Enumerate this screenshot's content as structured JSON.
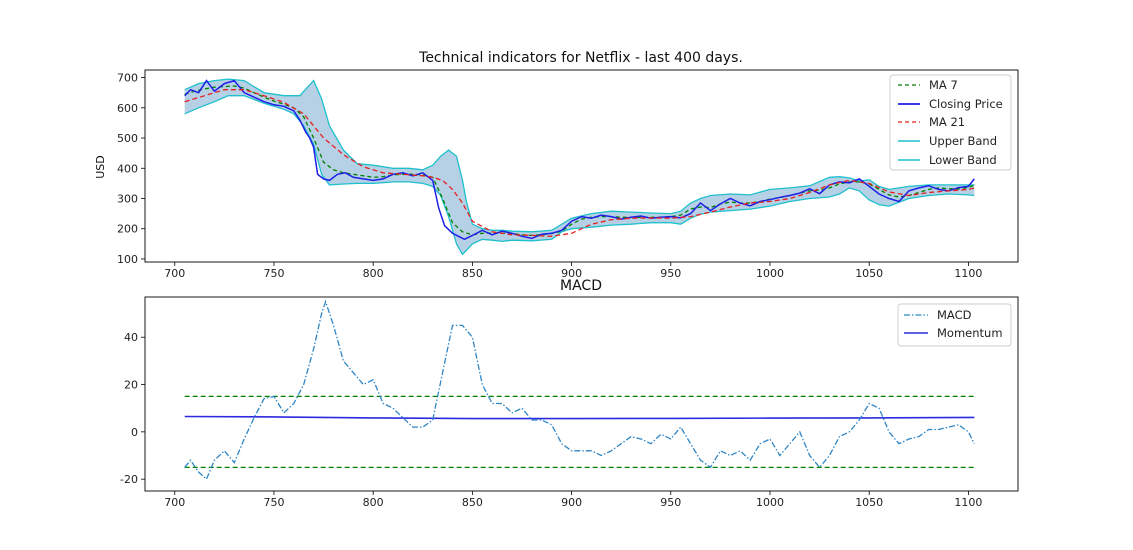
{
  "colors": {
    "ma7": "#008000",
    "closing": "#1f1fe8",
    "ma21": "#e62020",
    "band_line": "#1ec0cc",
    "band_fill": "#a9c9e2",
    "macd": "#2f86c5",
    "momentum": "#2a2ae0",
    "limits": "#008000",
    "axes": "#000000"
  },
  "chart_data": [
    {
      "type": "line",
      "title": "Technical indicators for Netflix - last 400 days.",
      "xlabel": "",
      "ylabel": "USD",
      "xlim": [
        685,
        1125
      ],
      "ylim": [
        90,
        725
      ],
      "xticks": [
        700,
        750,
        800,
        850,
        900,
        950,
        1000,
        1050,
        1100
      ],
      "yticks": [
        100,
        200,
        300,
        400,
        500,
        600,
        700
      ],
      "grid": false,
      "legend_position": "top-right",
      "legend": [
        "MA 7",
        "Closing Price",
        "MA 21",
        "Upper Band",
        "Lower Band"
      ],
      "series": [
        {
          "name": "Closing Price",
          "x": [
            705,
            708,
            712,
            716,
            720,
            725,
            730,
            735,
            740,
            745,
            750,
            755,
            760,
            763,
            766,
            768,
            770,
            772,
            775,
            778,
            782,
            786,
            790,
            795,
            800,
            805,
            810,
            815,
            820,
            825,
            830,
            833,
            836,
            840,
            843,
            846,
            850,
            855,
            860,
            865,
            870,
            875,
            880,
            885,
            890,
            895,
            900,
            905,
            910,
            915,
            920,
            925,
            930,
            935,
            940,
            945,
            950,
            955,
            960,
            965,
            970,
            975,
            980,
            985,
            990,
            995,
            1000,
            1005,
            1010,
            1015,
            1020,
            1025,
            1030,
            1035,
            1040,
            1045,
            1050,
            1055,
            1060,
            1065,
            1070,
            1075,
            1080,
            1085,
            1090,
            1095,
            1100,
            1103
          ],
          "y": [
            640,
            660,
            650,
            690,
            655,
            680,
            690,
            650,
            635,
            620,
            610,
            605,
            590,
            560,
            520,
            500,
            470,
            380,
            365,
            360,
            380,
            385,
            370,
            365,
            360,
            365,
            380,
            385,
            375,
            385,
            360,
            270,
            210,
            185,
            175,
            165,
            178,
            195,
            180,
            192,
            185,
            175,
            168,
            182,
            185,
            195,
            225,
            240,
            235,
            245,
            240,
            232,
            238,
            242,
            235,
            238,
            240,
            236,
            250,
            285,
            260,
            282,
            300,
            285,
            276,
            290,
            296,
            304,
            310,
            318,
            332,
            316,
            345,
            355,
            352,
            365,
            340,
            315,
            300,
            290,
            325,
            335,
            342,
            330,
            325,
            336,
            340,
            365
          ]
        },
        {
          "name": "MA 7",
          "x": [
            705,
            710,
            715,
            720,
            725,
            730,
            735,
            740,
            745,
            750,
            755,
            760,
            765,
            770,
            775,
            780,
            785,
            790,
            795,
            800,
            805,
            810,
            815,
            820,
            825,
            830,
            835,
            840,
            845,
            850,
            855,
            860,
            865,
            870,
            875,
            880,
            885,
            890,
            895,
            900,
            905,
            910,
            915,
            920,
            925,
            930,
            935,
            940,
            945,
            950,
            955,
            960,
            965,
            970,
            975,
            980,
            985,
            990,
            995,
            1000,
            1005,
            1010,
            1015,
            1020,
            1025,
            1030,
            1035,
            1040,
            1045,
            1050,
            1055,
            1060,
            1065,
            1070,
            1075,
            1080,
            1085,
            1090,
            1095,
            1100,
            1103
          ],
          "y": [
            645,
            655,
            662,
            668,
            670,
            672,
            665,
            650,
            635,
            622,
            612,
            600,
            570,
            500,
            420,
            395,
            385,
            380,
            375,
            370,
            372,
            378,
            380,
            380,
            378,
            370,
            300,
            220,
            190,
            180,
            185,
            186,
            185,
            184,
            180,
            178,
            180,
            184,
            192,
            215,
            232,
            238,
            240,
            240,
            238,
            238,
            238,
            238,
            238,
            240,
            245,
            265,
            272,
            270,
            282,
            288,
            285,
            285,
            290,
            298,
            303,
            310,
            318,
            325,
            328,
            335,
            348,
            355,
            355,
            348,
            330,
            312,
            305,
            310,
            320,
            330,
            335,
            332,
            332,
            336,
            345
          ]
        },
        {
          "name": "MA 21",
          "x": [
            705,
            715,
            725,
            735,
            745,
            755,
            765,
            775,
            785,
            795,
            805,
            815,
            825,
            830,
            835,
            840,
            845,
            850,
            860,
            870,
            880,
            890,
            900,
            910,
            920,
            930,
            940,
            950,
            960,
            970,
            980,
            990,
            1000,
            1010,
            1020,
            1030,
            1040,
            1050,
            1060,
            1070,
            1080,
            1090,
            1100,
            1103
          ],
          "y": [
            620,
            640,
            660,
            660,
            640,
            618,
            580,
            500,
            445,
            405,
            385,
            380,
            375,
            370,
            360,
            330,
            285,
            225,
            190,
            180,
            178,
            175,
            185,
            215,
            230,
            235,
            236,
            235,
            240,
            255,
            272,
            285,
            290,
            300,
            320,
            345,
            360,
            350,
            322,
            310,
            320,
            325,
            330,
            335
          ]
        },
        {
          "name": "Upper Band",
          "x": [
            705,
            712,
            720,
            727,
            735,
            745,
            755,
            763,
            770,
            774,
            778,
            785,
            792,
            800,
            810,
            818,
            825,
            830,
            834,
            838,
            842,
            845,
            847,
            850,
            855,
            860,
            865,
            870,
            880,
            890,
            900,
            910,
            920,
            930,
            940,
            950,
            955,
            960,
            965,
            970,
            980,
            990,
            1000,
            1010,
            1020,
            1030,
            1035,
            1040,
            1045,
            1050,
            1055,
            1060,
            1070,
            1080,
            1090,
            1100,
            1103
          ],
          "y": [
            660,
            680,
            690,
            695,
            690,
            650,
            640,
            640,
            690,
            630,
            540,
            460,
            415,
            410,
            400,
            400,
            395,
            410,
            440,
            460,
            440,
            360,
            290,
            215,
            200,
            195,
            195,
            192,
            190,
            195,
            235,
            250,
            258,
            255,
            252,
            250,
            258,
            285,
            300,
            310,
            315,
            312,
            330,
            335,
            342,
            370,
            372,
            368,
            358,
            362,
            340,
            330,
            340,
            345,
            345,
            345,
            345
          ]
        },
        {
          "name": "Lower Band",
          "x": [
            705,
            712,
            720,
            727,
            735,
            745,
            755,
            760,
            765,
            770,
            774,
            778,
            785,
            792,
            800,
            810,
            818,
            825,
            830,
            834,
            838,
            842,
            845,
            850,
            855,
            860,
            865,
            870,
            880,
            890,
            895,
            900,
            910,
            920,
            930,
            940,
            950,
            955,
            960,
            965,
            970,
            980,
            990,
            1000,
            1010,
            1020,
            1030,
            1035,
            1040,
            1045,
            1050,
            1055,
            1060,
            1070,
            1080,
            1090,
            1100,
            1103
          ],
          "y": [
            580,
            600,
            620,
            640,
            640,
            615,
            595,
            580,
            540,
            480,
            380,
            345,
            348,
            350,
            350,
            355,
            355,
            350,
            340,
            310,
            240,
            150,
            115,
            150,
            165,
            162,
            158,
            162,
            160,
            165,
            190,
            200,
            205,
            212,
            215,
            220,
            220,
            215,
            235,
            248,
            255,
            260,
            265,
            275,
            290,
            300,
            305,
            315,
            335,
            325,
            295,
            280,
            275,
            300,
            310,
            315,
            312,
            310
          ]
        }
      ]
    },
    {
      "type": "line",
      "title": "MACD",
      "xlabel": "",
      "ylabel": "",
      "xlim": [
        685,
        1125
      ],
      "ylim": [
        -25,
        57
      ],
      "xticks": [
        700,
        750,
        800,
        850,
        900,
        950,
        1000,
        1050,
        1100
      ],
      "yticks": [
        -20,
        0,
        20,
        40
      ],
      "grid": false,
      "legend_position": "top-right",
      "legend": [
        "MACD",
        "Momentum"
      ],
      "series": [
        {
          "name": "MACD",
          "x": [
            705,
            708,
            712,
            716,
            720,
            725,
            730,
            735,
            740,
            745,
            750,
            755,
            760,
            765,
            770,
            774,
            776,
            780,
            785,
            790,
            795,
            800,
            805,
            810,
            815,
            820,
            825,
            830,
            835,
            840,
            845,
            850,
            855,
            860,
            865,
            870,
            875,
            880,
            885,
            890,
            895,
            900,
            905,
            910,
            915,
            920,
            925,
            930,
            935,
            940,
            945,
            950,
            955,
            960,
            965,
            970,
            975,
            980,
            985,
            990,
            995,
            1000,
            1005,
            1010,
            1015,
            1020,
            1025,
            1030,
            1035,
            1040,
            1045,
            1050,
            1055,
            1060,
            1065,
            1070,
            1075,
            1080,
            1085,
            1090,
            1095,
            1100,
            1103
          ],
          "y": [
            -15,
            -12,
            -17,
            -20,
            -12,
            -8,
            -13,
            -3,
            6,
            14,
            15,
            8,
            12,
            20,
            35,
            50,
            55,
            45,
            30,
            25,
            20,
            22,
            12,
            10,
            6,
            2,
            2,
            5,
            25,
            45,
            45,
            40,
            20,
            12,
            12,
            8,
            10,
            5,
            5,
            3,
            -5,
            -8,
            -8,
            -8,
            -10,
            -8,
            -5,
            -2,
            -3,
            -5,
            -1,
            -3,
            2,
            -5,
            -12,
            -15,
            -8,
            -10,
            -8,
            -12,
            -5,
            -3,
            -10,
            -5,
            0,
            -10,
            -15,
            -10,
            -2,
            0,
            5,
            12,
            10,
            0,
            -5,
            -3,
            -2,
            1,
            1,
            2,
            3,
            0,
            -5
          ]
        },
        {
          "name": "Momentum",
          "x": [
            705,
            750,
            800,
            850,
            900,
            950,
            1000,
            1050,
            1103
          ],
          "y": [
            6.5,
            6.3,
            5.9,
            5.6,
            5.6,
            5.7,
            5.8,
            5.9,
            6.1
          ]
        }
      ],
      "reference_lines": [
        15,
        -15
      ]
    }
  ]
}
